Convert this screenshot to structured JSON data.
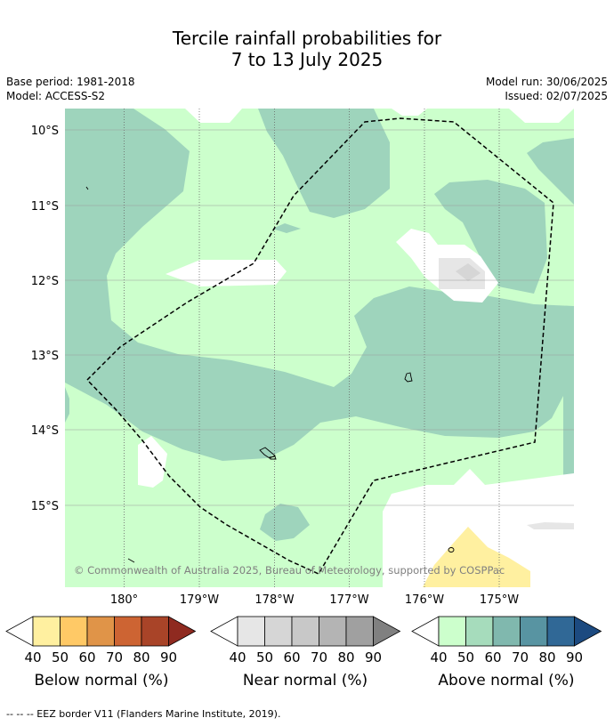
{
  "header": {
    "title_line1": "Tercile rainfall probabilities for",
    "title_line2": "7 to 13 July 2025",
    "base_period": "Base period: 1981-2018",
    "model": "Model: ACCESS-S2",
    "model_run": "Model run: 30/06/2025",
    "issued": "Issued: 02/07/2025"
  },
  "map": {
    "lat_labels": [
      "10°S",
      "11°S",
      "12°S",
      "13°S",
      "14°S",
      "15°S"
    ],
    "lon_labels": [
      "180°",
      "179°W",
      "178°W",
      "177°W",
      "176°W",
      "175°W"
    ],
    "copyright": "© Commonwealth of Australia 2025, Bureau of Meteorology, supported by COSPPac",
    "colors": {
      "below_40": "#fff0a0",
      "near_40": "#e6e6e6",
      "near_50": "#d6d6d6",
      "above_40": "#ccffcc",
      "above_50": "#9ed4bc",
      "eez_line": "#000000"
    }
  },
  "legends": {
    "ticks": [
      "40",
      "50",
      "60",
      "70",
      "80",
      "90"
    ],
    "below": {
      "label": "Below normal (%)",
      "colors": [
        "#fff0a0",
        "#ffc966",
        "#e09448",
        "#cd6433",
        "#a94428",
        "#8f2a20"
      ]
    },
    "near": {
      "label": "Near normal (%)",
      "colors": [
        "#e6e6e6",
        "#d6d6d6",
        "#c8c8c8",
        "#b4b4b4",
        "#a0a0a0",
        "#808080"
      ]
    },
    "above": {
      "label": "Above normal (%)",
      "colors": [
        "#ccffcc",
        "#a6dcbc",
        "#80b8ae",
        "#5894a2",
        "#306896",
        "#1c4a80"
      ]
    }
  },
  "footnote": "-- -- -- EEZ border V11 (Flanders Marine Institute, 2019)."
}
